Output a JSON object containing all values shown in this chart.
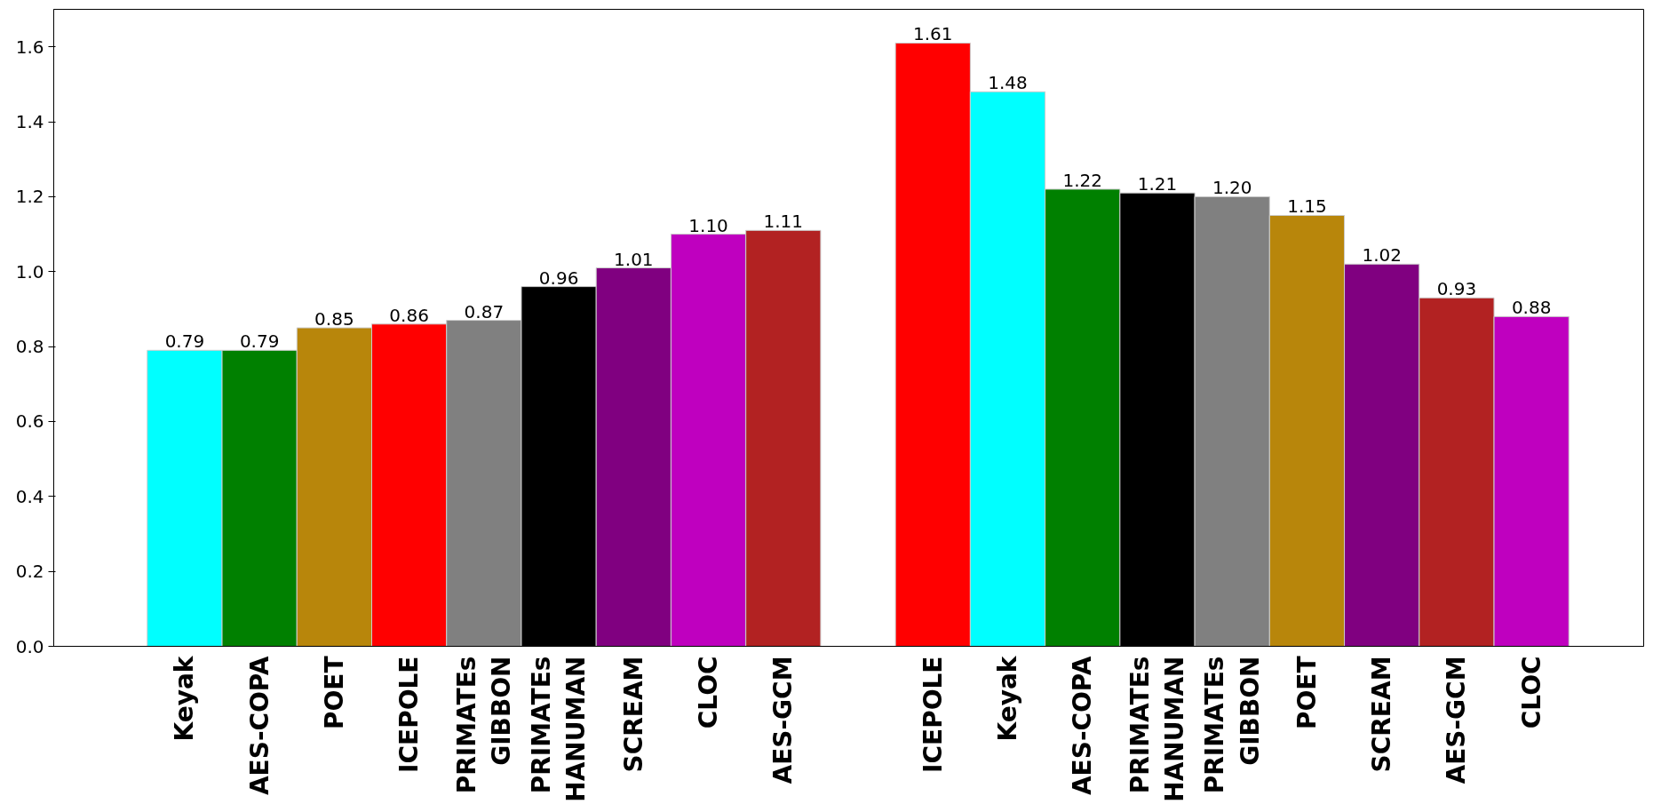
{
  "chart_data": {
    "type": "bar",
    "categories": [
      "Keyak",
      "AES-COPA",
      "POET",
      "ICEPOLE",
      "PRIMATEs\nGIBBON",
      "PRIMATEs\nHANUMAN",
      "SCREAM",
      "CLOC",
      "AES-GCM",
      null,
      "ICEPOLE",
      "Keyak",
      "AES-COPA",
      "PRIMATEs\nHANUMAN",
      "PRIMATEs\nGIBBON",
      "POET",
      "SCREAM",
      "AES-GCM",
      "CLOC"
    ],
    "values": [
      0.79,
      0.79,
      0.85,
      0.86,
      0.87,
      0.96,
      1.01,
      1.1,
      1.11,
      null,
      1.61,
      1.48,
      1.22,
      1.21,
      1.2,
      1.15,
      1.02,
      0.93,
      0.88
    ],
    "value_labels": [
      "0.79",
      "0.79",
      "0.85",
      "0.86",
      "0.87",
      "0.96",
      "1.01",
      "1.10",
      "1.11",
      null,
      "1.61",
      "1.48",
      "1.22",
      "1.21",
      "1.20",
      "1.15",
      "1.02",
      "0.93",
      "0.88"
    ],
    "colors": [
      "#00ffff",
      "#008000",
      "#b8860b",
      "#ff0000",
      "#808080",
      "#000000",
      "#800080",
      "#bf00bf",
      "#b22222",
      null,
      "#ff0000",
      "#00ffff",
      "#008000",
      "#000000",
      "#808080",
      "#b8860b",
      "#800080",
      "#b22222",
      "#bf00bf"
    ],
    "ylim": [
      0,
      1.7
    ],
    "yticks": [
      {
        "value": 0,
        "label": "0.0"
      },
      {
        "value": 0.2,
        "label": "0.2"
      },
      {
        "value": 0.4,
        "label": "0.4"
      },
      {
        "value": 0.6,
        "label": "0.6"
      },
      {
        "value": 0.8,
        "label": "0.8"
      },
      {
        "value": 1.0,
        "label": "1.0"
      },
      {
        "value": 1.2,
        "label": "1.2"
      },
      {
        "value": 1.4,
        "label": "1.4"
      },
      {
        "value": 1.6,
        "label": "1.6"
      }
    ],
    "grid": false
  }
}
